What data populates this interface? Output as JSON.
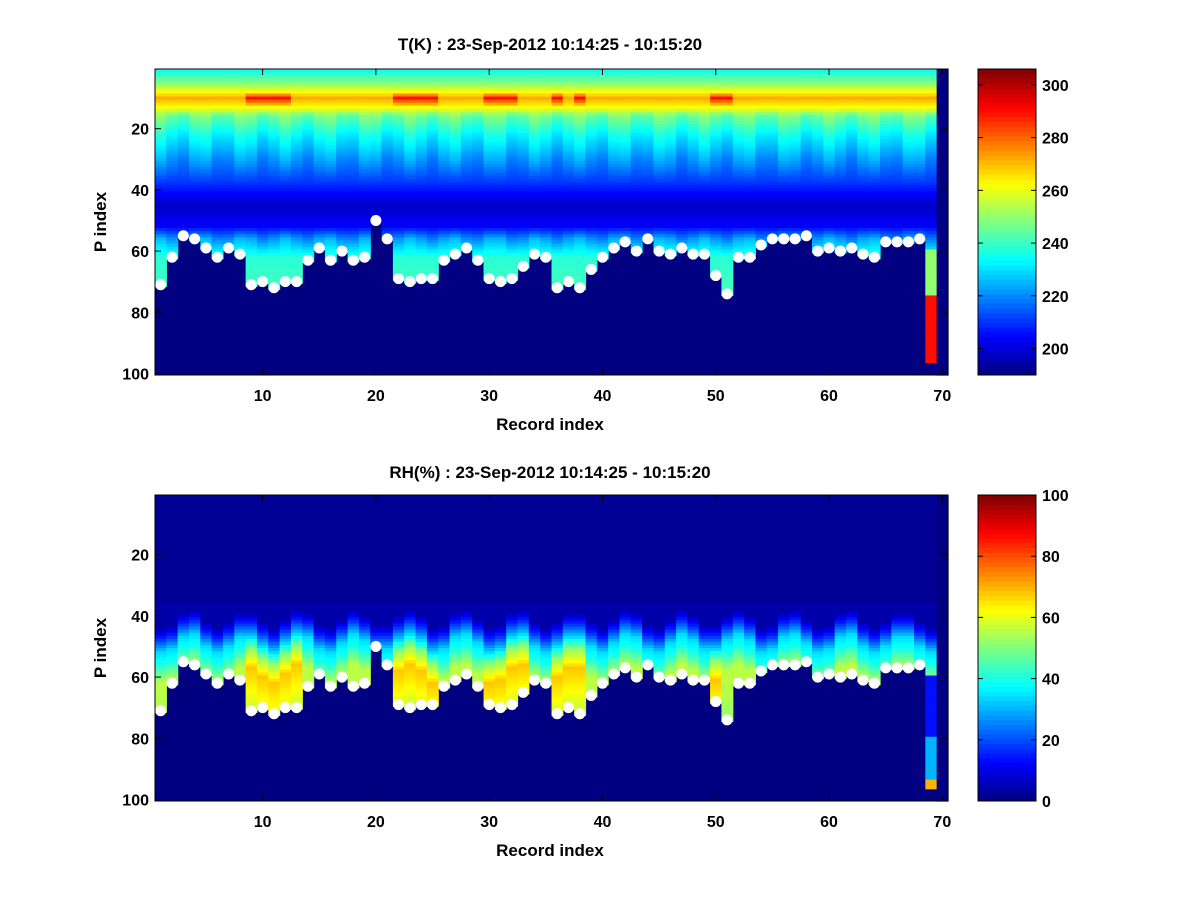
{
  "figure": {
    "background": "#ffffff",
    "colormap": "jet",
    "lowest_level_color": "#00008f",
    "marker_color": "#ffffff"
  },
  "chart_data": [
    {
      "type": "heatmap",
      "title": "T(K) : 23-Sep-2012 10:14:25 - 10:15:20",
      "xlabel": "Record index",
      "ylabel": "P index",
      "xlim": [
        0.5,
        70.5
      ],
      "ylim": [
        1,
        100
      ],
      "y_reversed": true,
      "xticks": [
        10,
        20,
        30,
        40,
        50,
        60,
        70
      ],
      "yticks": [
        20,
        40,
        60,
        80,
        100
      ],
      "colorbar": {
        "range": [
          190,
          306
        ],
        "ticks": [
          200,
          220,
          240,
          260,
          280,
          300
        ]
      },
      "profile_model": {
        "variable": "temperature",
        "base": 190,
        "top_of_profile": 235,
        "peak_level": 10,
        "peak_value": 272,
        "warm_peak_value": 290,
        "mid_minimum_level": 45,
        "mid_minimum_value": 198,
        "near_surface_value": 238,
        "column_69_values": [
          {
            "from": 60,
            "to": 75,
            "value": 250
          },
          {
            "from": 75,
            "to": 97,
            "value": 290
          }
        ],
        "column_70_value": 190
      },
      "warm_records": [
        9,
        10,
        11,
        12,
        22,
        23,
        24,
        25,
        30,
        31,
        32,
        36,
        38,
        50,
        51
      ]
    },
    {
      "type": "heatmap",
      "title": "RH(%) : 23-Sep-2012 10:14:25 - 10:15:20",
      "xlabel": "Record index",
      "ylabel": "P index",
      "xlim": [
        0.5,
        70.5
      ],
      "ylim": [
        1,
        100
      ],
      "y_reversed": true,
      "xticks": [
        10,
        20,
        30,
        40,
        50,
        60,
        70
      ],
      "yticks": [
        20,
        40,
        60,
        80,
        100
      ],
      "colorbar": {
        "range": [
          0,
          100
        ],
        "ticks": [
          0,
          20,
          40,
          60,
          80,
          100
        ]
      },
      "profile_model": {
        "variable": "relative_humidity",
        "base": 0,
        "dry_layer_below": 38,
        "moist_onset_level": 42,
        "moist_value": 48,
        "peak_value": 62,
        "humid_peak_value": 68,
        "column_69_values": [
          {
            "from": 60,
            "to": 80,
            "value": 14
          },
          {
            "from": 80,
            "to": 94,
            "value": 30
          },
          {
            "from": 94,
            "to": 97,
            "value": 70
          }
        ],
        "column_70_value": 0
      },
      "humid_records": [
        9,
        10,
        11,
        12,
        13,
        22,
        23,
        24,
        25,
        30,
        31,
        32,
        33,
        36,
        37,
        38,
        50
      ]
    }
  ],
  "surface_levels": {
    "records": [
      1,
      2,
      3,
      4,
      5,
      6,
      7,
      8,
      9,
      10,
      11,
      12,
      13,
      14,
      15,
      16,
      17,
      18,
      19,
      20,
      21,
      22,
      23,
      24,
      25,
      26,
      27,
      28,
      29,
      30,
      31,
      32,
      33,
      34,
      35,
      36,
      37,
      38,
      39,
      40,
      41,
      42,
      43,
      44,
      45,
      46,
      47,
      48,
      49,
      50,
      51,
      52,
      53,
      54,
      55,
      56,
      57,
      58,
      59,
      60,
      61,
      62,
      63,
      64,
      65,
      66,
      67,
      68
    ],
    "p_index": [
      71,
      62,
      55,
      56,
      59,
      62,
      59,
      61,
      71,
      70,
      72,
      70,
      70,
      63,
      59,
      63,
      60,
      63,
      62,
      50,
      56,
      69,
      70,
      69,
      69,
      63,
      61,
      59,
      63,
      69,
      70,
      69,
      65,
      61,
      62,
      72,
      70,
      72,
      66,
      62,
      59,
      57,
      60,
      56,
      60,
      61,
      59,
      61,
      61,
      68,
      74,
      62,
      62,
      58,
      56,
      56,
      56,
      55,
      60,
      59,
      60,
      59,
      61,
      62,
      57,
      57,
      57,
      56
    ]
  }
}
